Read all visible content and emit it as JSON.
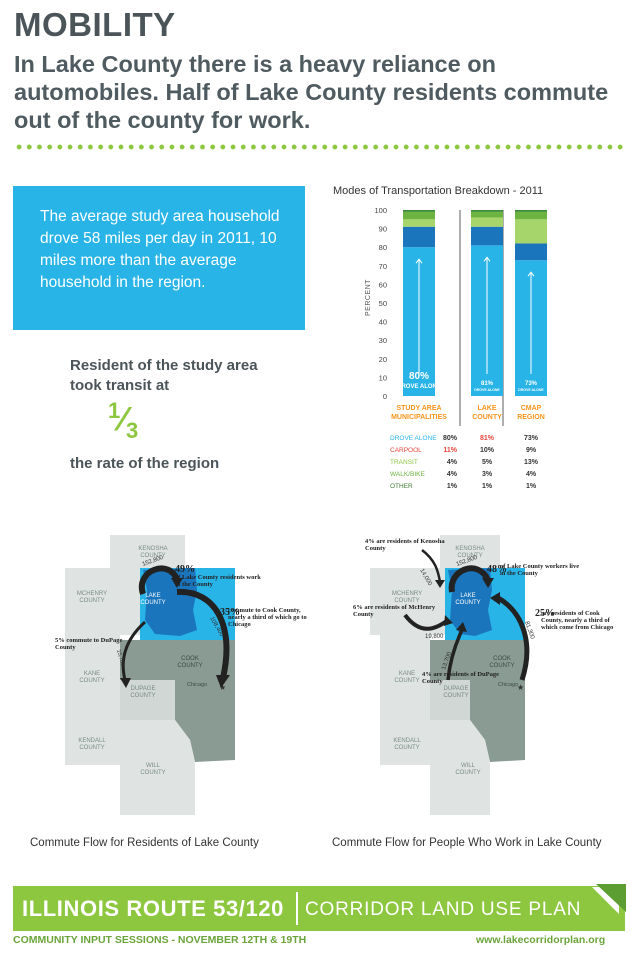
{
  "header": {
    "title": "MOBILITY",
    "subtitle": "In Lake County there is a heavy reliance on automobiles. Half of Lake County residents commute out of the county for work."
  },
  "infobox": {
    "text": "The average study area household drove 58 miles per day in 2011, 10 miles more than the average household in the region."
  },
  "transit": {
    "line1": "Resident of the study area took transit at",
    "fraction_num": "1",
    "fraction_den": "3",
    "line2": "the rate of the region"
  },
  "chart_data": {
    "type": "bar",
    "title": "Modes of Transportation Breakdown - 2011",
    "ylabel": "PERCENT",
    "ylim": [
      0,
      100
    ],
    "yticks": [
      "0",
      "10",
      "20",
      "30",
      "40",
      "50",
      "60",
      "70",
      "80",
      "90",
      "100"
    ],
    "categories": [
      "STUDY AREA MUNICIPALITIES",
      "LAKE COUNTY",
      "CMAP REGION"
    ],
    "series": [
      {
        "name": "DROVE ALONE",
        "values": [
          80,
          81,
          73
        ],
        "labels": [
          "80%",
          "81%",
          "73%"
        ],
        "color": "#29b4e8"
      },
      {
        "name": "CARPOOL",
        "values": [
          11,
          10,
          9
        ],
        "labels": [
          "11%",
          "10%",
          "9%"
        ],
        "color": "#1b75bc"
      },
      {
        "name": "TRANSIT",
        "values": [
          4,
          5,
          13
        ],
        "labels": [
          "4%",
          "5%",
          "13%"
        ],
        "color": "#a5d56b"
      },
      {
        "name": "WALK/BIKE",
        "values": [
          4,
          3,
          4
        ],
        "labels": [
          "4%",
          "3%",
          "4%"
        ],
        "color": "#6cb33f"
      },
      {
        "name": "OTHER",
        "values": [
          1,
          1,
          1
        ],
        "labels": [
          "1%",
          "1%",
          "1%"
        ],
        "color": "#3d8a3c"
      }
    ],
    "bar_label_sub": "DROVE ALONE",
    "legend_placement": "table-below",
    "label_colors": {
      "DROVE ALONE": "#29b4e8",
      "CARPOOL": "#e8453c",
      "TRANSIT": "#8dc63f",
      "WALK/BIKE": "#6cb33f",
      "OTHER": "#3d7a33"
    },
    "category_color": "#f7941d"
  },
  "map_left": {
    "counties": [
      "KENOSHA COUNTY",
      "MCHENRY COUNTY",
      "LAKE COUNTY",
      "KANE COUNTY",
      "DUPAGE COUNTY",
      "COOK COUNTY",
      "KENDALL COUNTY",
      "WILL COUNTY"
    ],
    "city": "Chicago",
    "flows": {
      "within": "152,800",
      "to_cook": "108,400",
      "to_dupage": "15,700"
    },
    "annotations": {
      "within_pct": "49%",
      "within_text": "of Lake County residents work in the County",
      "cook_pct": "35%",
      "cook_text": "commute to Cook County, nearly a third of which go to Chicago",
      "dupage_text": "5% commute to DuPage County"
    },
    "caption": "Commute Flow for Residents of Lake County"
  },
  "map_right": {
    "counties": [
      "KENOSHA COUNTY",
      "MCHENRY COUNTY",
      "LAKE COUNTY",
      "KANE COUNTY",
      "DUPAGE COUNTY",
      "COOK COUNTY",
      "KENDALL COUNTY",
      "WILL COUNTY"
    ],
    "city": "Chicago",
    "flows": {
      "within": "152,800",
      "from_kenosha": "14,000",
      "from_mchenry": "19,800",
      "from_dupage": "13,700",
      "from_cook": "81,300"
    },
    "annotations": {
      "kenosha_text": "4% are residents of Kenosha County",
      "within_pct": "48%",
      "within_text": "of Lake County workers live in the County",
      "mchenry_text": "6% are residents of McHenry County",
      "cook_pct": "25%",
      "cook_text": "are residents of Cook County, nearly a third of which come from Chicago",
      "dupage_text": "4% are residents of DuPage County"
    },
    "caption": "Commute Flow for People Who Work in Lake County"
  },
  "footer": {
    "title": "ILLINOIS ROUTE 53/120",
    "subtitle": "CORRIDOR LAND USE PLAN",
    "sessions": "COMMUNITY INPUT SESSIONS - NOVEMBER 12TH & 19TH",
    "url": "www.lakecorridorplan.org"
  },
  "colors": {
    "green": "#8dc63f",
    "blue": "#29b4e8",
    "dark_blue": "#1b75bc",
    "county": "#dfe4e2",
    "cook": "#8a9b93",
    "dupage_fill": "#d0d7d4"
  }
}
